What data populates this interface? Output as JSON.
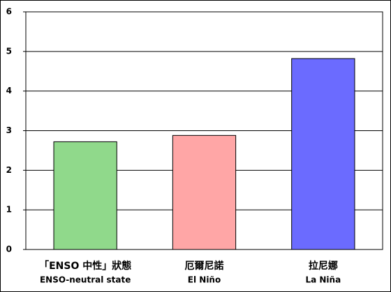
{
  "chart_data": {
    "type": "bar",
    "categories": [
      [
        "「ENSO 中性」狀態",
        "ENSO-neutral state"
      ],
      [
        "厄爾尼諾",
        "El Niño"
      ],
      [
        "拉尼娜",
        "La Niña"
      ]
    ],
    "values": [
      2.72,
      2.88,
      4.82
    ],
    "colors": [
      "#90d98b",
      "#ffa6a6",
      "#6b6bff"
    ],
    "ylim": [
      0,
      6
    ],
    "yticks": [
      0,
      1,
      2,
      3,
      4,
      5,
      6
    ],
    "grid": true
  }
}
